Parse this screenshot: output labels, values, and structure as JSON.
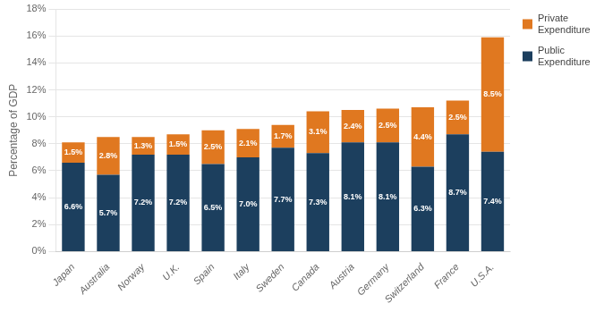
{
  "chart_data": {
    "type": "bar",
    "stacked": true,
    "categories": [
      "Japan",
      "Australia",
      "Norway",
      "U.K.",
      "Spain",
      "Italy",
      "Sweden",
      "Canada",
      "Austria",
      "Germany",
      "Switzerland",
      "France",
      "U.S.A."
    ],
    "series": [
      {
        "name": "Public\nExpenditure",
        "color": "#1c3f5e",
        "values": [
          6.6,
          5.7,
          7.2,
          7.2,
          6.5,
          7.0,
          7.7,
          7.3,
          8.1,
          8.1,
          6.3,
          8.7,
          7.4
        ],
        "value_labels": [
          "6.6%",
          "5.7%",
          "7.2%",
          "7.2%",
          "6.5%",
          "7.0%",
          "7.7%",
          "7.3%",
          "8.1%",
          "8.1%",
          "6.3%",
          "8.7%",
          "7.4%"
        ]
      },
      {
        "name": "Private\nExpenditure",
        "color": "#e07820",
        "values": [
          1.5,
          2.8,
          1.3,
          1.5,
          2.5,
          2.1,
          1.7,
          3.1,
          2.4,
          2.5,
          4.4,
          2.5,
          8.5
        ],
        "value_labels": [
          "1.5%",
          "2.8%",
          "1.3%",
          "1.5%",
          "2.5%",
          "2.1%",
          "1.7%",
          "3.1%",
          "2.4%",
          "2.5%",
          "4.4%",
          "2.5%",
          "8.5%"
        ]
      }
    ],
    "ylabel": "Percentage of GDP",
    "ylim": [
      0,
      18
    ],
    "yticks": [
      {
        "value": 0,
        "label": "0%"
      },
      {
        "value": 2,
        "label": "2%"
      },
      {
        "value": 4,
        "label": "4%"
      },
      {
        "value": 6,
        "label": "6%"
      },
      {
        "value": 8,
        "label": "8%"
      },
      {
        "value": 10,
        "label": "10%"
      },
      {
        "value": 12,
        "label": "12%"
      },
      {
        "value": 14,
        "label": "14%"
      },
      {
        "value": 16,
        "label": "16%"
      },
      {
        "value": 18,
        "label": "18%"
      }
    ],
    "grid": true,
    "legend": "right",
    "data_labels": true
  }
}
